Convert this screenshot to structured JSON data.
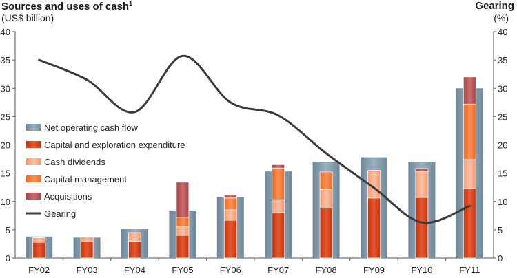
{
  "chart_data": {
    "type": "bar",
    "title": "Sources and uses of cash",
    "title_footnote": "1",
    "ylabel": "(US$ billion)",
    "y2_title": "Gearing",
    "y2label": "(%)",
    "ylim": [
      0,
      40
    ],
    "y2lim": [
      0,
      40
    ],
    "yticks": [
      0,
      5,
      10,
      15,
      20,
      25,
      30,
      35,
      40
    ],
    "categories": [
      "FY02",
      "FY03",
      "FY04",
      "FY05",
      "FY06",
      "FY07",
      "FY08",
      "FY09",
      "FY10",
      "FY11"
    ],
    "series": [
      {
        "name": "Net operating cash flow",
        "kind": "bar-wide",
        "color": "#7f98a8",
        "values": [
          3.8,
          3.6,
          5.1,
          8.4,
          10.8,
          15.3,
          17.0,
          17.8,
          16.9,
          30.0
        ]
      },
      {
        "name": "Capital and exploration expenditure",
        "kind": "stack",
        "color": "#d8431d",
        "values": [
          2.8,
          2.9,
          3.0,
          4.0,
          6.7,
          8.0,
          8.8,
          10.6,
          10.7,
          12.3
        ]
      },
      {
        "name": "Cash dividends",
        "kind": "stack",
        "color": "#f6a882",
        "values": [
          0.8,
          0.8,
          1.5,
          1.5,
          1.8,
          2.3,
          3.3,
          4.4,
          4.6,
          5.1
        ]
      },
      {
        "name": "Capital management",
        "kind": "stack",
        "color": "#f47a33",
        "values": [
          0.0,
          0.0,
          0.0,
          1.7,
          2.1,
          5.6,
          2.9,
          0.2,
          0.0,
          9.8
        ]
      },
      {
        "name": "Acquisitions",
        "kind": "stack",
        "color": "#b85252",
        "values": [
          0.0,
          0.0,
          0.0,
          6.2,
          0.5,
          0.6,
          0.2,
          0.3,
          0.5,
          4.8
        ]
      },
      {
        "name": "Gearing",
        "kind": "line",
        "axis": "right",
        "color": "#3a3a3a",
        "values": [
          35.0,
          31.5,
          25.8,
          35.7,
          27.5,
          25.2,
          18.5,
          12.4,
          6.3,
          9.2
        ]
      }
    ],
    "grid": false,
    "legend_position": "left-middle"
  }
}
